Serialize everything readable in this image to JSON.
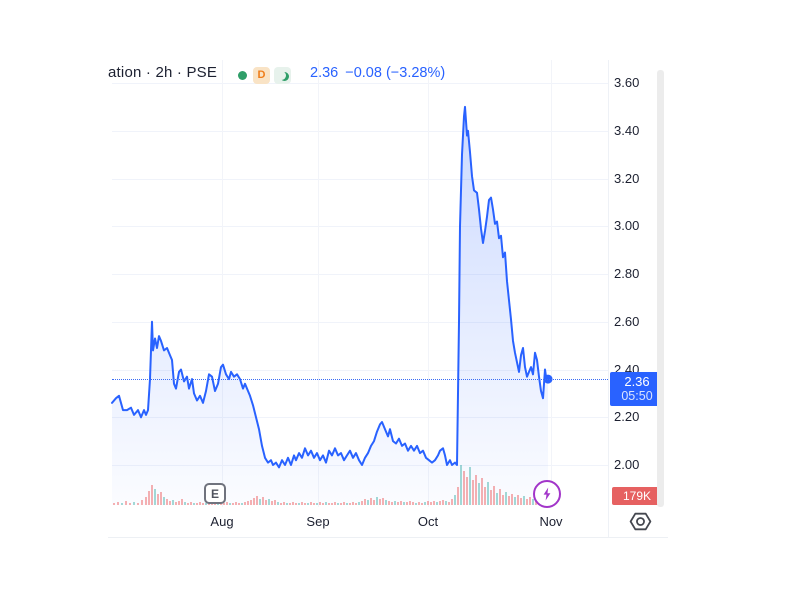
{
  "header": {
    "symbol_text": "ation · 2h · PSE",
    "status_icons": [
      {
        "name": "market-open-dot",
        "meaning": "status dot"
      },
      {
        "name": "delayed-data",
        "glyph": "D"
      },
      {
        "name": "market-closed-moon",
        "meaning": "crescent moon"
      }
    ],
    "last_price": "2.36",
    "change_text": "−0.08 (−3.28%)"
  },
  "price_axis": {
    "tick_labels": [
      "3.60",
      "3.40",
      "3.20",
      "3.00",
      "2.80",
      "2.60",
      "2.40",
      "2.20",
      "2.00"
    ],
    "price_label": {
      "price": "2.36",
      "time": "05:50"
    },
    "volume_label": "179K"
  },
  "time_axis": {
    "ticks": [
      {
        "label": "Aug",
        "x": 222
      },
      {
        "label": "Sep",
        "x": 318
      },
      {
        "label": "Oct",
        "x": 428
      },
      {
        "label": "Nov",
        "x": 551
      }
    ]
  },
  "markers": {
    "earnings": {
      "label": "E"
    },
    "boost_icon": "lightning-bolt"
  },
  "colors": {
    "line": "#2962ff",
    "fill_top": "rgba(41,98,255,0.24)",
    "fill_bottom": "rgba(41,98,255,0.02)",
    "quote_text": "#2962ff",
    "price_label_bg": "#2962ff",
    "volume_label_bg": "#e66161",
    "volume_up": "rgba(38,166,154,0.42)",
    "volume_down": "rgba(239,83,80,0.45)",
    "grid": "#f0f3fa",
    "axis_text": "#1c2030",
    "boost_purple": "#a235c9",
    "status_green": "#2f9e68",
    "status_orange": "#ef7d1a"
  },
  "chart_data": {
    "type": "area",
    "title": "ation · 2h · PSE",
    "interval": "2h",
    "exchange": "PSE",
    "last_price": 2.36,
    "change": -0.08,
    "change_pct": -3.28,
    "last_time": "05:50",
    "last_volume": "179K",
    "high": 3.5,
    "low": 1.99,
    "y_ticks": [
      2.0,
      2.2,
      2.4,
      2.6,
      2.8,
      3.0,
      3.2,
      3.4,
      3.6
    ],
    "ylim": [
      1.93,
      3.7
    ],
    "x_tick_labels": [
      "Aug",
      "Sep",
      "Oct",
      "Nov"
    ],
    "legend_position": "none",
    "grid": true,
    "line": [
      [
        112,
        2.26
      ],
      [
        116,
        2.28
      ],
      [
        119,
        2.29
      ],
      [
        123,
        2.23
      ],
      [
        127,
        2.23
      ],
      [
        131,
        2.24
      ],
      [
        134,
        2.21
      ],
      [
        138,
        2.23
      ],
      [
        141,
        2.2
      ],
      [
        144,
        2.23
      ],
      [
        146,
        2.21
      ],
      [
        148,
        2.23
      ],
      [
        150,
        2.36
      ],
      [
        152,
        2.6
      ],
      [
        153,
        2.48
      ],
      [
        155,
        2.53
      ],
      [
        157,
        2.49
      ],
      [
        159,
        2.54
      ],
      [
        161,
        2.52
      ],
      [
        164,
        2.48
      ],
      [
        167,
        2.49
      ],
      [
        170,
        2.46
      ],
      [
        172,
        2.44
      ],
      [
        174,
        2.34
      ],
      [
        176,
        2.32
      ],
      [
        179,
        2.39
      ],
      [
        181,
        2.4
      ],
      [
        184,
        2.35
      ],
      [
        187,
        2.37
      ],
      [
        189,
        2.32
      ],
      [
        192,
        2.36
      ],
      [
        194,
        2.3
      ],
      [
        197,
        2.27
      ],
      [
        200,
        2.29
      ],
      [
        203,
        2.26
      ],
      [
        206,
        2.31
      ],
      [
        209,
        2.38
      ],
      [
        212,
        2.37
      ],
      [
        215,
        2.31
      ],
      [
        218,
        2.34
      ],
      [
        221,
        2.41
      ],
      [
        223,
        2.42
      ],
      [
        226,
        2.38
      ],
      [
        229,
        2.36
      ],
      [
        231,
        2.39
      ],
      [
        234,
        2.37
      ],
      [
        237,
        2.38
      ],
      [
        240,
        2.36
      ],
      [
        243,
        2.32
      ],
      [
        245,
        2.34
      ],
      [
        248,
        2.31
      ],
      [
        250,
        2.29
      ],
      [
        253,
        2.25
      ],
      [
        256,
        2.2
      ],
      [
        259,
        2.15
      ],
      [
        262,
        2.08
      ],
      [
        265,
        2.03
      ],
      [
        268,
        2.01
      ],
      [
        271,
        2.02
      ],
      [
        273,
        2.0
      ],
      [
        276,
        2.01
      ],
      [
        279,
        1.99
      ],
      [
        282,
        2.02
      ],
      [
        285,
        2.0
      ],
      [
        288,
        2.03
      ],
      [
        291,
        2.0
      ],
      [
        294,
        2.04
      ],
      [
        296,
        2.02
      ],
      [
        299,
        2.05
      ],
      [
        302,
        2.03
      ],
      [
        305,
        2.07
      ],
      [
        308,
        2.04
      ],
      [
        311,
        2.06
      ],
      [
        314,
        2.03
      ],
      [
        317,
        2.05
      ],
      [
        320,
        2.02
      ],
      [
        323,
        2.04
      ],
      [
        326,
        2.01
      ],
      [
        329,
        2.06
      ],
      [
        332,
        2.04
      ],
      [
        335,
        2.07
      ],
      [
        338,
        2.04
      ],
      [
        341,
        2.05
      ],
      [
        344,
        2.02
      ],
      [
        347,
        2.04
      ],
      [
        350,
        2.06
      ],
      [
        353,
        2.03
      ],
      [
        356,
        2.05
      ],
      [
        359,
        2.02
      ],
      [
        362,
        2.0
      ],
      [
        365,
        2.03
      ],
      [
        368,
        2.05
      ],
      [
        371,
        2.08
      ],
      [
        374,
        2.1
      ],
      [
        377,
        2.14
      ],
      [
        380,
        2.17
      ],
      [
        382,
        2.18
      ],
      [
        385,
        2.15
      ],
      [
        388,
        2.12
      ],
      [
        390,
        2.15
      ],
      [
        393,
        2.1
      ],
      [
        396,
        2.09
      ],
      [
        399,
        2.11
      ],
      [
        402,
        2.08
      ],
      [
        405,
        2.09
      ],
      [
        408,
        2.06
      ],
      [
        411,
        2.08
      ],
      [
        414,
        2.06
      ],
      [
        417,
        2.08
      ],
      [
        420,
        2.05
      ],
      [
        423,
        2.06
      ],
      [
        426,
        2.03
      ],
      [
        429,
        2.02
      ],
      [
        432,
        2.01
      ],
      [
        435,
        2.02
      ],
      [
        438,
        2.04
      ],
      [
        440,
        2.06
      ],
      [
        443,
        2.07
      ],
      [
        445,
        2.04
      ],
      [
        447,
        2.0
      ],
      [
        450,
        2.02
      ],
      [
        452,
        2.0
      ],
      [
        455,
        2.01
      ],
      [
        457,
        2.0
      ],
      [
        459,
        2.6
      ],
      [
        460,
        3.0
      ],
      [
        462,
        3.3
      ],
      [
        464,
        3.46
      ],
      [
        465,
        3.5
      ],
      [
        466,
        3.44
      ],
      [
        467,
        3.38
      ],
      [
        468,
        3.4
      ],
      [
        470,
        3.31
      ],
      [
        472,
        3.21
      ],
      [
        474,
        3.15
      ],
      [
        477,
        3.14
      ],
      [
        479,
        3.07
      ],
      [
        481,
        2.99
      ],
      [
        483,
        2.93
      ],
      [
        485,
        2.98
      ],
      [
        487,
        3.04
      ],
      [
        489,
        3.11
      ],
      [
        491,
        3.12
      ],
      [
        493,
        3.07
      ],
      [
        495,
        3.01
      ],
      [
        497,
        3.02
      ],
      [
        499,
        2.95
      ],
      [
        501,
        2.96
      ],
      [
        503,
        2.87
      ],
      [
        505,
        2.89
      ],
      [
        507,
        2.77
      ],
      [
        509,
        2.69
      ],
      [
        511,
        2.61
      ],
      [
        513,
        2.52
      ],
      [
        515,
        2.47
      ],
      [
        517,
        2.43
      ],
      [
        519,
        2.39
      ],
      [
        521,
        2.46
      ],
      [
        523,
        2.49
      ],
      [
        525,
        2.41
      ],
      [
        527,
        2.37
      ],
      [
        529,
        2.39
      ],
      [
        531,
        2.41
      ],
      [
        533,
        2.38
      ],
      [
        535,
        2.47
      ],
      [
        537,
        2.44
      ],
      [
        539,
        2.37
      ],
      [
        541,
        2.31
      ],
      [
        543,
        2.28
      ],
      [
        545,
        2.4
      ],
      [
        546,
        2.37
      ],
      [
        548,
        2.36
      ]
    ],
    "volume_bars": [
      [
        113,
        2,
        "r"
      ],
      [
        117,
        3,
        "r"
      ],
      [
        121,
        2,
        "g"
      ],
      [
        125,
        4,
        "r"
      ],
      [
        129,
        2,
        "r"
      ],
      [
        133,
        3,
        "g"
      ],
      [
        137,
        2,
        "r"
      ],
      [
        141,
        5,
        "r"
      ],
      [
        145,
        8,
        "r"
      ],
      [
        148,
        14,
        "r"
      ],
      [
        151,
        20,
        "r"
      ],
      [
        154,
        16,
        "g"
      ],
      [
        157,
        11,
        "r"
      ],
      [
        160,
        13,
        "r"
      ],
      [
        163,
        8,
        "g"
      ],
      [
        166,
        6,
        "r"
      ],
      [
        169,
        4,
        "r"
      ],
      [
        172,
        5,
        "g"
      ],
      [
        175,
        3,
        "r"
      ],
      [
        178,
        4,
        "r"
      ],
      [
        181,
        6,
        "r"
      ],
      [
        184,
        3,
        "g"
      ],
      [
        187,
        2,
        "r"
      ],
      [
        190,
        3,
        "r"
      ],
      [
        193,
        2,
        "g"
      ],
      [
        196,
        2,
        "r"
      ],
      [
        199,
        3,
        "r"
      ],
      [
        202,
        2,
        "r"
      ],
      [
        205,
        2,
        "g"
      ],
      [
        208,
        3,
        "r"
      ],
      [
        211,
        2,
        "r"
      ],
      [
        214,
        4,
        "r"
      ],
      [
        217,
        2,
        "g"
      ],
      [
        220,
        3,
        "r"
      ],
      [
        223,
        2,
        "r"
      ],
      [
        226,
        3,
        "r"
      ],
      [
        229,
        2,
        "g"
      ],
      [
        232,
        2,
        "r"
      ],
      [
        235,
        3,
        "r"
      ],
      [
        238,
        2,
        "r"
      ],
      [
        241,
        2,
        "g"
      ],
      [
        244,
        3,
        "r"
      ],
      [
        247,
        4,
        "r"
      ],
      [
        250,
        5,
        "r"
      ],
      [
        253,
        7,
        "r"
      ],
      [
        256,
        9,
        "r"
      ],
      [
        259,
        6,
        "g"
      ],
      [
        262,
        8,
        "r"
      ],
      [
        265,
        5,
        "r"
      ],
      [
        268,
        6,
        "g"
      ],
      [
        271,
        4,
        "r"
      ],
      [
        274,
        5,
        "r"
      ],
      [
        277,
        3,
        "g"
      ],
      [
        280,
        2,
        "r"
      ],
      [
        283,
        3,
        "r"
      ],
      [
        286,
        2,
        "g"
      ],
      [
        289,
        2,
        "r"
      ],
      [
        292,
        3,
        "r"
      ],
      [
        295,
        2,
        "r"
      ],
      [
        298,
        2,
        "g"
      ],
      [
        301,
        3,
        "r"
      ],
      [
        304,
        2,
        "r"
      ],
      [
        307,
        2,
        "g"
      ],
      [
        310,
        3,
        "r"
      ],
      [
        313,
        2,
        "r"
      ],
      [
        316,
        2,
        "g"
      ],
      [
        319,
        3,
        "r"
      ],
      [
        322,
        2,
        "r"
      ],
      [
        325,
        3,
        "g"
      ],
      [
        328,
        2,
        "r"
      ],
      [
        331,
        2,
        "r"
      ],
      [
        334,
        3,
        "r"
      ],
      [
        337,
        2,
        "g"
      ],
      [
        340,
        2,
        "r"
      ],
      [
        343,
        3,
        "r"
      ],
      [
        346,
        2,
        "g"
      ],
      [
        349,
        2,
        "r"
      ],
      [
        352,
        3,
        "r"
      ],
      [
        355,
        2,
        "r"
      ],
      [
        358,
        3,
        "g"
      ],
      [
        361,
        4,
        "r"
      ],
      [
        364,
        6,
        "r"
      ],
      [
        367,
        5,
        "g"
      ],
      [
        370,
        7,
        "r"
      ],
      [
        373,
        5,
        "r"
      ],
      [
        376,
        8,
        "g"
      ],
      [
        379,
        6,
        "r"
      ],
      [
        382,
        7,
        "r"
      ],
      [
        385,
        5,
        "g"
      ],
      [
        388,
        4,
        "r"
      ],
      [
        391,
        3,
        "r"
      ],
      [
        394,
        4,
        "g"
      ],
      [
        397,
        3,
        "r"
      ],
      [
        400,
        4,
        "r"
      ],
      [
        403,
        3,
        "g"
      ],
      [
        406,
        3,
        "r"
      ],
      [
        409,
        4,
        "r"
      ],
      [
        412,
        3,
        "r"
      ],
      [
        415,
        2,
        "g"
      ],
      [
        418,
        3,
        "r"
      ],
      [
        421,
        2,
        "r"
      ],
      [
        424,
        3,
        "g"
      ],
      [
        427,
        4,
        "r"
      ],
      [
        430,
        3,
        "r"
      ],
      [
        433,
        4,
        "r"
      ],
      [
        436,
        3,
        "g"
      ],
      [
        439,
        4,
        "r"
      ],
      [
        442,
        5,
        "r"
      ],
      [
        445,
        4,
        "g"
      ],
      [
        448,
        3,
        "r"
      ],
      [
        451,
        6,
        "r"
      ],
      [
        454,
        10,
        "g"
      ],
      [
        457,
        18,
        "r"
      ],
      [
        460,
        40,
        "g"
      ],
      [
        463,
        34,
        "r"
      ],
      [
        466,
        28,
        "r"
      ],
      [
        469,
        38,
        "g"
      ],
      [
        472,
        25,
        "r"
      ],
      [
        475,
        30,
        "r"
      ],
      [
        478,
        22,
        "g"
      ],
      [
        481,
        27,
        "r"
      ],
      [
        484,
        18,
        "r"
      ],
      [
        487,
        23,
        "g"
      ],
      [
        490,
        15,
        "r"
      ],
      [
        493,
        19,
        "r"
      ],
      [
        496,
        12,
        "g"
      ],
      [
        499,
        16,
        "r"
      ],
      [
        502,
        10,
        "r"
      ],
      [
        505,
        13,
        "g"
      ],
      [
        508,
        9,
        "r"
      ],
      [
        511,
        11,
        "r"
      ],
      [
        514,
        8,
        "g"
      ],
      [
        517,
        10,
        "r"
      ],
      [
        520,
        7,
        "r"
      ],
      [
        523,
        9,
        "g"
      ],
      [
        526,
        6,
        "r"
      ],
      [
        529,
        8,
        "r"
      ],
      [
        532,
        6,
        "g"
      ],
      [
        535,
        7,
        "r"
      ],
      [
        538,
        5,
        "r"
      ],
      [
        541,
        6,
        "g"
      ],
      [
        544,
        5,
        "r"
      ],
      [
        547,
        6,
        "r"
      ],
      [
        550,
        4,
        "r"
      ]
    ]
  }
}
